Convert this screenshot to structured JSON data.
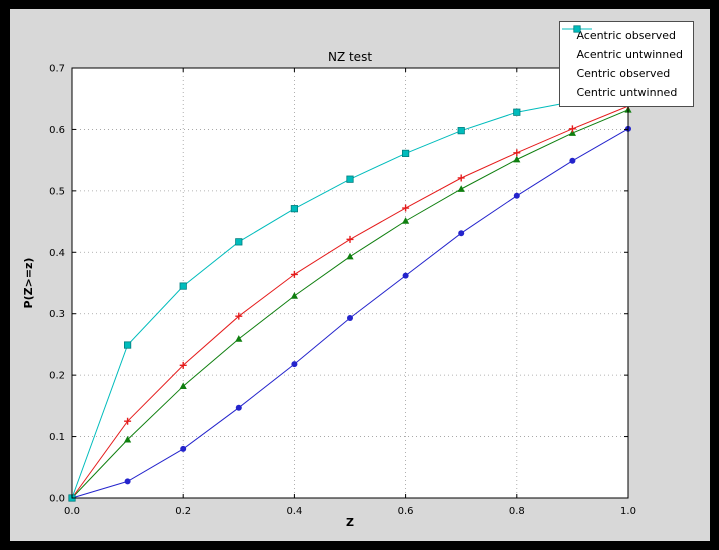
{
  "figure": {
    "outer_background": "#000000",
    "background": "#d8d8d8",
    "plot_background": "#ffffff",
    "grid_color": "#9c9c9c"
  },
  "chart_data": {
    "type": "line",
    "title": "NZ test",
    "xlabel": "Z",
    "ylabel": "P(Z>=z)",
    "xlim": [
      0.0,
      1.0
    ],
    "ylim": [
      0.0,
      0.7
    ],
    "grid": true,
    "legend_position": "upper right",
    "xticks": [
      0.0,
      0.2,
      0.4,
      0.6,
      0.8,
      1.0
    ],
    "xtick_labels": [
      "0.0",
      "0.2",
      "0.4",
      "0.6",
      "0.8",
      "1.0"
    ],
    "yticks": [
      0.0,
      0.1,
      0.2,
      0.3,
      0.4,
      0.5,
      0.6,
      0.7
    ],
    "ytick_labels": [
      "0.0",
      "0.1",
      "0.2",
      "0.3",
      "0.4",
      "0.5",
      "0.6",
      "0.7"
    ],
    "x": [
      0.0,
      0.1,
      0.2,
      0.3,
      0.4,
      0.5,
      0.6,
      0.7,
      0.8,
      0.9,
      1.0
    ],
    "series": [
      {
        "name": "Acentric observed",
        "color": "#2424cc",
        "marker": "circle",
        "values": [
          0.0,
          0.027,
          0.08,
          0.147,
          0.218,
          0.293,
          0.362,
          0.431,
          0.492,
          0.549,
          0.601
        ]
      },
      {
        "name": "Acentric untwinned",
        "color": "#0f7f0f",
        "marker": "triangle-up",
        "values": [
          0.0,
          0.095,
          0.182,
          0.259,
          0.329,
          0.393,
          0.451,
          0.503,
          0.551,
          0.594,
          0.632
        ]
      },
      {
        "name": "Centric observed",
        "color": "#e51c1c",
        "marker": "plus",
        "values": [
          0.0,
          0.125,
          0.216,
          0.296,
          0.364,
          0.421,
          0.472,
          0.521,
          0.562,
          0.601,
          0.638
        ]
      },
      {
        "name": "Centric untwinned",
        "color": "#00bcbc",
        "marker": "square",
        "values": [
          0.0,
          0.249,
          0.345,
          0.417,
          0.471,
          0.519,
          0.561,
          0.598,
          0.628,
          0.645,
          0.657
        ]
      }
    ]
  }
}
